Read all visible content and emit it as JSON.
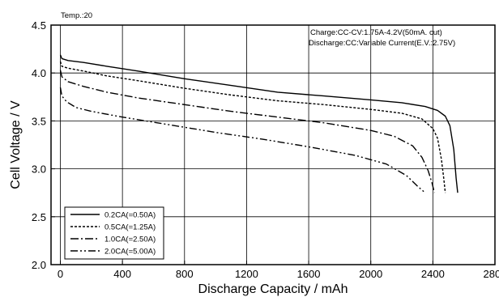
{
  "chart_data": {
    "type": "line",
    "xlabel": "Discharge  Capacity  /  mAh",
    "ylabel": "Cell  Voltage  /  V",
    "xlim": [
      -60,
      2800
    ],
    "ylim": [
      2.0,
      4.5
    ],
    "x_ticks": [
      0,
      400,
      800,
      1200,
      1600,
      2000,
      2400,
      2800
    ],
    "y_ticks": [
      2.0,
      2.5,
      3.0,
      3.5,
      4.0,
      4.5
    ],
    "x_tick_labels": [
      "0",
      "400",
      "800",
      "1200",
      "1600",
      "2000",
      "2400",
      "2800"
    ],
    "y_tick_labels": [
      "2.0",
      "2.5",
      "3.0",
      "3.5",
      "4.0",
      "4.5"
    ],
    "grid": true,
    "legend_position": "bottom-left",
    "annotations": {
      "temp": "Temp.:20",
      "charge": "Charge:CC-CV:1.75A-4.2V(50mA. cut)",
      "discharge": "Discharge:CC:Variable  Current(E.V.:2.75V)"
    },
    "series": [
      {
        "name": "0.2CA(=0.50A)",
        "dash": "solid",
        "x": [
          0,
          10,
          50,
          150,
          300,
          500,
          800,
          1100,
          1400,
          1700,
          2000,
          2200,
          2350,
          2430,
          2480,
          2510,
          2535,
          2550,
          2560
        ],
        "y": [
          4.19,
          4.15,
          4.13,
          4.11,
          4.07,
          4.02,
          3.94,
          3.87,
          3.8,
          3.76,
          3.72,
          3.69,
          3.65,
          3.61,
          3.55,
          3.45,
          3.2,
          2.9,
          2.75
        ]
      },
      {
        "name": "0.5CA(=1.25A)",
        "dash": "dotted",
        "x": [
          0,
          10,
          50,
          150,
          300,
          500,
          800,
          1100,
          1400,
          1700,
          2000,
          2200,
          2330,
          2400,
          2430,
          2455,
          2470,
          2480
        ],
        "y": [
          4.12,
          4.07,
          4.05,
          4.02,
          3.97,
          3.92,
          3.84,
          3.77,
          3.71,
          3.67,
          3.62,
          3.58,
          3.52,
          3.42,
          3.32,
          3.1,
          2.9,
          2.75
        ]
      },
      {
        "name": "1.0CA(=2.50A)",
        "dash": "dash-dot",
        "x": [
          0,
          10,
          50,
          150,
          300,
          500,
          800,
          1100,
          1400,
          1700,
          2000,
          2150,
          2270,
          2330,
          2370,
          2395,
          2410
        ],
        "y": [
          4.03,
          3.96,
          3.91,
          3.86,
          3.8,
          3.74,
          3.67,
          3.6,
          3.54,
          3.48,
          3.4,
          3.34,
          3.24,
          3.12,
          2.98,
          2.85,
          2.75
        ]
      },
      {
        "name": "2.0CA(=5.00A)",
        "dash": "dash-dot-dot",
        "x": [
          0,
          10,
          40,
          100,
          200,
          400,
          700,
          1000,
          1300,
          1600,
          1900,
          2100,
          2230,
          2300,
          2350
        ],
        "y": [
          3.85,
          3.76,
          3.7,
          3.64,
          3.6,
          3.54,
          3.46,
          3.38,
          3.31,
          3.23,
          3.14,
          3.05,
          2.93,
          2.82,
          2.75
        ]
      }
    ]
  }
}
